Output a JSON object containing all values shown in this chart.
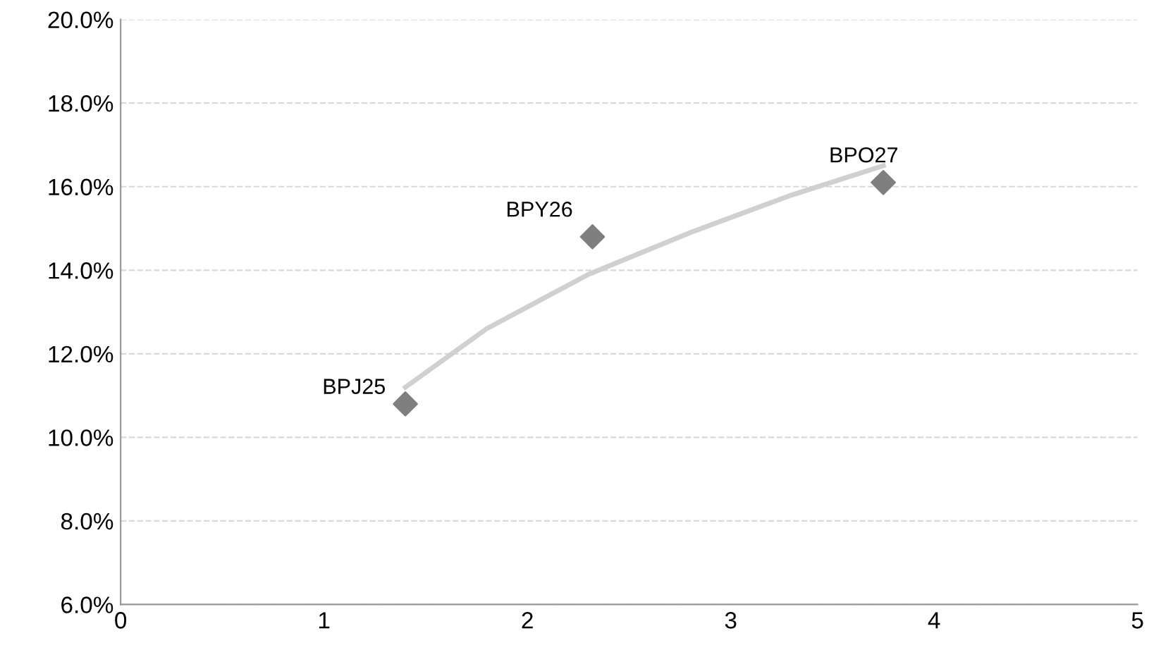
{
  "chart_data": {
    "type": "scatter",
    "series": [
      {
        "type": "line",
        "color": "#d0d0d0",
        "x": [
          1.4,
          1.8,
          2.3,
          2.8,
          3.3,
          3.75
        ],
        "values": [
          11.2,
          12.6,
          13.9,
          14.9,
          15.8,
          16.5
        ],
        "marker": "none"
      },
      {
        "color": "#7f7f7f",
        "x": [
          1.4,
          2.32,
          3.75
        ],
        "values": [
          10.8,
          14.8,
          16.1
        ],
        "marker": "diamond"
      }
    ],
    "annotations": [
      {
        "text": "BPJ25",
        "x": 1.4,
        "y": 10.8
      },
      {
        "text": "BPY26",
        "x": 2.32,
        "y": 14.8
      },
      {
        "text": "BPO27",
        "x": 3.75,
        "y": 16.1
      }
    ],
    "xlim": [
      0,
      5
    ],
    "xticks": [
      0,
      1,
      2,
      3,
      4,
      5
    ],
    "ylim": [
      6,
      20
    ],
    "yticks": [
      {
        "value": 6,
        "label": "6.0%"
      },
      {
        "value": 8,
        "label": "8.0%"
      },
      {
        "value": 10,
        "label": "10.0%"
      },
      {
        "value": 12,
        "label": "12.0%"
      },
      {
        "value": 14,
        "label": "14.0%"
      },
      {
        "value": 16,
        "label": "16.0%"
      },
      {
        "value": 18,
        "label": "18.0%"
      },
      {
        "value": 20,
        "label": "20.0%"
      }
    ],
    "grid": "y"
  }
}
